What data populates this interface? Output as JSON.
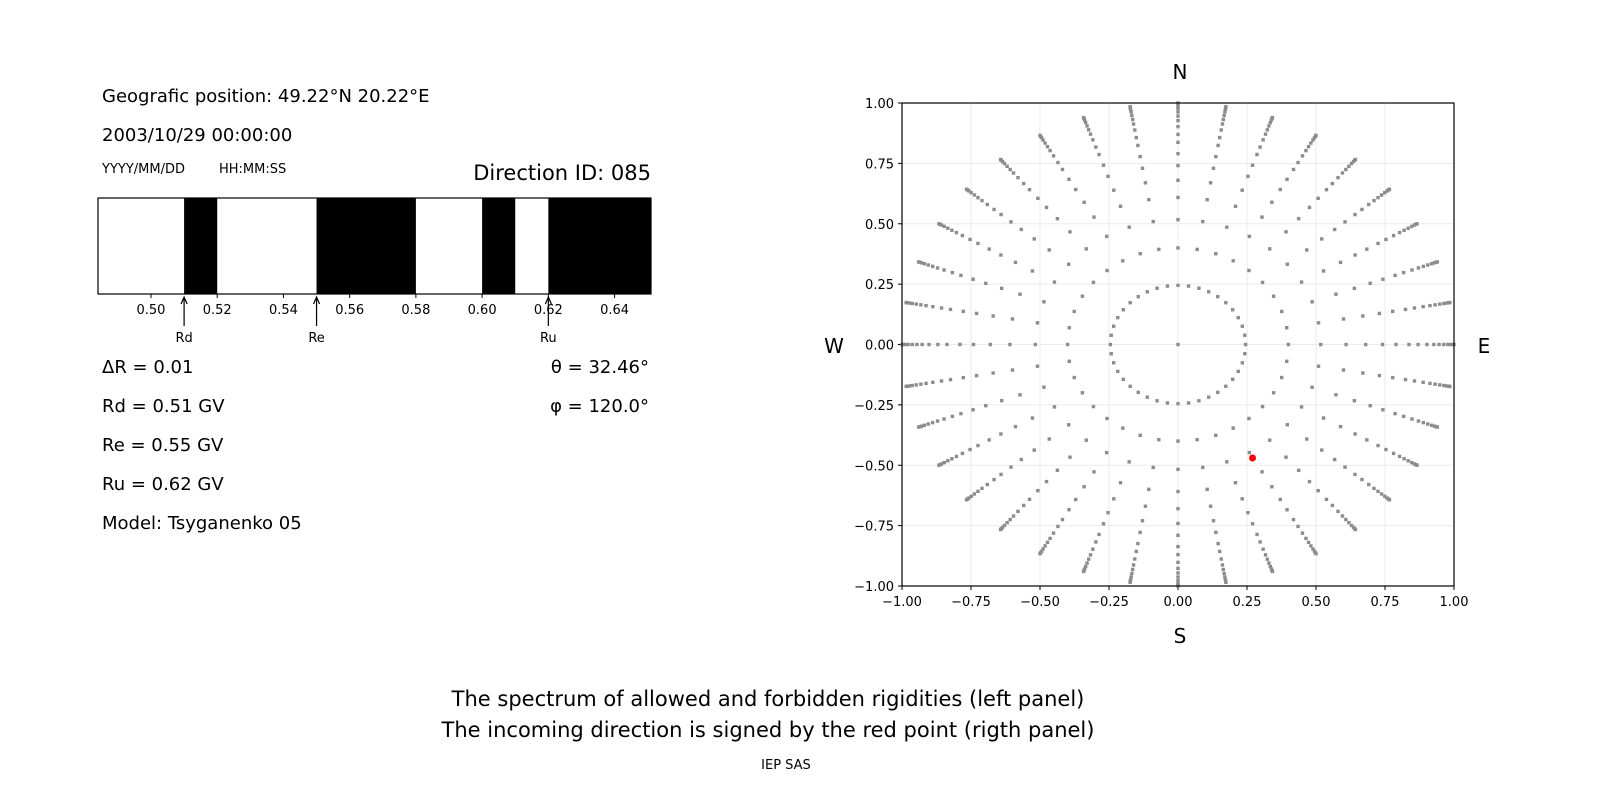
{
  "info": {
    "position": "Geografic position: 49.22°N 20.22°E",
    "datetime": "2003/10/29 00:00:00",
    "date_format": "YYYY/MM/DD",
    "time_format": "HH:MM:SS",
    "direction_id": "Direction ID: 085",
    "delta_r": "ΔR = 0.01",
    "rd": "Rd = 0.51 GV",
    "re": "Re = 0.55 GV",
    "ru": "Ru = 0.62 GV",
    "model": "Model: Tsyganenko 05",
    "theta": "θ = 32.46°",
    "phi": "φ = 120.0°"
  },
  "captions": {
    "line1": "The spectrum of allowed and forbidden rigidities (left panel)",
    "line2": "The incoming direction is signed by the red point (rigth panel)",
    "credit": "IEP SAS"
  },
  "chart_data": [
    {
      "type": "bar",
      "description_role": "rigidity spectrum",
      "xlim": [
        0.484,
        0.651
      ],
      "xticks": [
        "0.50",
        "0.52",
        "0.54",
        "0.56",
        "0.58",
        "0.60",
        "0.62",
        "0.64"
      ],
      "forbidden_intervals": [
        [
          0.51,
          0.52
        ],
        [
          0.55,
          0.58
        ],
        [
          0.6,
          0.61
        ],
        [
          0.62,
          0.651
        ]
      ],
      "allowed_color": "#ffffff",
      "forbidden_color": "#000000",
      "markers": [
        {
          "label": "Rd",
          "value": 0.51
        },
        {
          "label": "Re",
          "value": 0.55
        },
        {
          "label": "Ru",
          "value": 0.62
        }
      ]
    },
    {
      "type": "scatter",
      "xlim": [
        -1,
        1
      ],
      "ylim": [
        -1,
        1
      ],
      "grid": true,
      "xticks": [
        "−1.00",
        "−0.75",
        "−0.50",
        "−0.25",
        "0.00",
        "0.25",
        "0.50",
        "0.75",
        "1.00"
      ],
      "yticks": [
        "−1.00",
        "−0.75",
        "−0.50",
        "−0.25",
        "0.00",
        "0.25",
        "0.50",
        "0.75",
        "1.00"
      ],
      "compass": {
        "top": "N",
        "bottom": "S",
        "left": "W",
        "right": "E"
      },
      "grid_points": {
        "color": "#8c8c8c",
        "center": [
          0,
          0
        ],
        "inner_ring_radius": 0.245,
        "inner_ring_count": 40,
        "spoke_azimuth_step_deg": 10,
        "spoke_radii": [
          0.4,
          0.517,
          0.609,
          0.68,
          0.741,
          0.79,
          0.837,
          0.87,
          0.902,
          0.927,
          0.946,
          0.963,
          0.978,
          0.989,
          0.996,
          1.0
        ]
      },
      "highlight_point": {
        "x": 0.27,
        "y": -0.47,
        "color": "#ff0000"
      }
    }
  ]
}
